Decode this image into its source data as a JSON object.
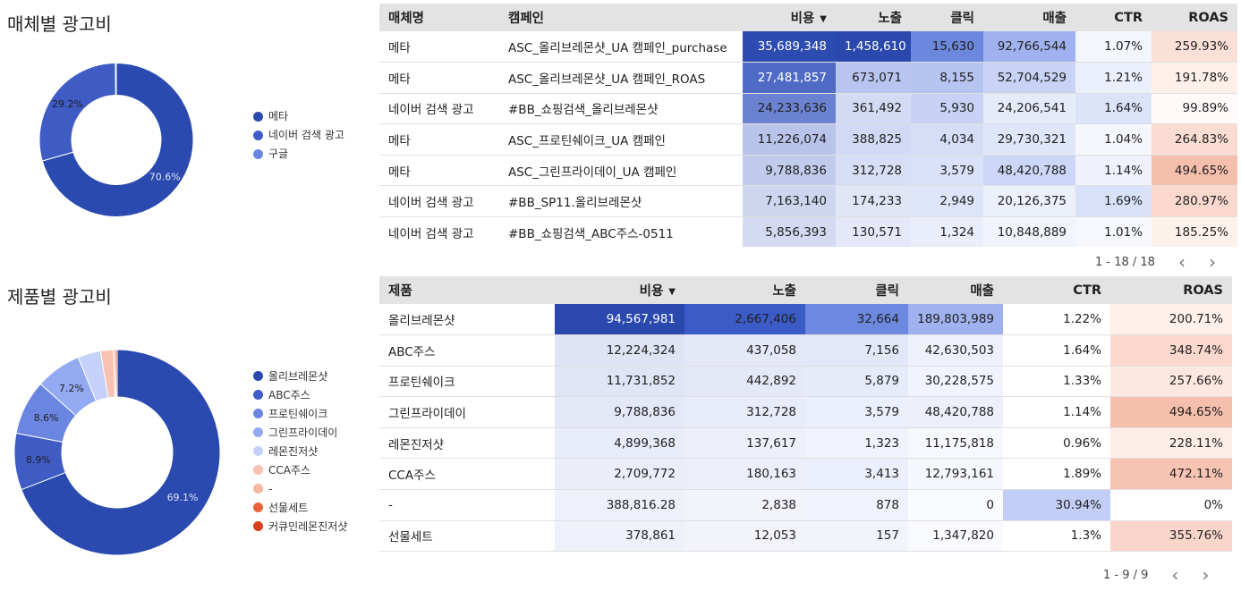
{
  "media_chart": {
    "title": "매체별 광고비",
    "legend": [
      {
        "name": "메타",
        "color": "#2a4aaf"
      },
      {
        "name": "네이버 검색 광고",
        "color": "#3e5cc4"
      },
      {
        "name": "구글",
        "color": "#6a86e0"
      }
    ],
    "slice_labels": [
      "70.6%",
      "29.2%"
    ]
  },
  "product_chart": {
    "title": "제품별 광고비",
    "legend": [
      {
        "name": "올리브레몬샷",
        "color": "#2a4aaf"
      },
      {
        "name": "ABC주스",
        "color": "#3e5cc4"
      },
      {
        "name": "프로틴쉐이크",
        "color": "#6a86e0"
      },
      {
        "name": "그린프라이데이",
        "color": "#93aaf2"
      },
      {
        "name": "레몬진저샷",
        "color": "#c5d1f8"
      },
      {
        "name": "CCA주스",
        "color": "#f7c1b3"
      },
      {
        "name": "-",
        "color": "#f6b89f"
      },
      {
        "name": "선물세트",
        "color": "#e8643a"
      },
      {
        "name": "커큐민레몬진저샷",
        "color": "#d8401c"
      }
    ],
    "slice_labels": [
      "69.1%",
      "8.9%",
      "8.6%",
      "7.2%"
    ]
  },
  "chart_data": [
    {
      "type": "pie",
      "title": "매체별 광고비",
      "categories": [
        "메타",
        "네이버 검색 광고",
        "구글"
      ],
      "values": [
        70.6,
        29.2,
        0.2
      ],
      "colors": [
        "#2a4aaf",
        "#3e5cc4",
        "#6a86e0"
      ]
    },
    {
      "type": "pie",
      "title": "제품별 광고비",
      "categories": [
        "올리브레몬샷",
        "ABC주스",
        "프로틴쉐이크",
        "그린프라이데이",
        "레몬진저샷",
        "CCA주스",
        "-",
        "선물세트",
        "커큐민레몬진저샷"
      ],
      "values": [
        69.1,
        8.9,
        8.6,
        7.2,
        3.6,
        2.0,
        0.3,
        0.3,
        0.0
      ],
      "colors": [
        "#2a4aaf",
        "#3e5cc4",
        "#6a86e0",
        "#93aaf2",
        "#c5d1f8",
        "#f7c1b3",
        "#f6b89f",
        "#e8643a",
        "#d8401c"
      ]
    }
  ],
  "campaign_table": {
    "columns": [
      {
        "label": "매체명",
        "align": "left",
        "sort": ""
      },
      {
        "label": "캠페인",
        "align": "left",
        "sort": ""
      },
      {
        "label": "비용",
        "align": "right",
        "sort": "▼"
      },
      {
        "label": "노출",
        "align": "right",
        "sort": ""
      },
      {
        "label": "클릭",
        "align": "right",
        "sort": ""
      },
      {
        "label": "매출",
        "align": "right",
        "sort": ""
      },
      {
        "label": "CTR",
        "align": "right",
        "sort": ""
      },
      {
        "label": "ROAS",
        "align": "right",
        "sort": ""
      }
    ],
    "rows": [
      {
        "cells": [
          "메타",
          "ASC_올리브레몬샷_UA 캠페인_purchase",
          "35,689,348",
          "1,458,610",
          "15,630",
          "92,766,544",
          "1.07%",
          "259.93%"
        ],
        "bg": [
          "",
          "",
          "#2d4cb1",
          "#2a48ae",
          "#6b87de",
          "#9fb2ef",
          "#f3f6fd",
          "#fbe0d8"
        ],
        "fg": [
          "",
          "",
          "#ffffff",
          "#ffffff",
          "",
          "",
          "",
          ""
        ]
      },
      {
        "cells": [
          "메타",
          "ASC_올리브레몬샷_UA 캠페인_ROAS",
          "27,481,857",
          "673,071",
          "8,155",
          "52,704,529",
          "1.21%",
          "191.78%"
        ],
        "bg": [
          "",
          "",
          "#506bc6",
          "#b7c5f0",
          "#b6c4f1",
          "#c8d3f5",
          "#ebeffb",
          "#fdefea"
        ],
        "fg": [
          "",
          "",
          "#ffffff",
          "",
          "",
          "",
          "",
          ""
        ]
      },
      {
        "cells": [
          "네이버 검색 광고",
          "#BB_쇼핑검색_올리브레몬샷",
          "24,233,636",
          "361,492",
          "5,930",
          "24,206,541",
          "1.64%",
          "99.89%"
        ],
        "bg": [
          "",
          "",
          "#6a82d1",
          "#d3dbf4",
          "#c7d2f4",
          "#e6ebfa",
          "#dbe3f9",
          "#fffaf9"
        ],
        "fg": [
          "",
          "",
          "",
          "",
          "",
          "",
          "",
          ""
        ]
      },
      {
        "cells": [
          "메타",
          "ASC_프로틴쉐이크_UA 캠페인",
          "11,226,074",
          "388,825",
          "4,034",
          "29,730,321",
          "1.04%",
          "264.83%"
        ],
        "bg": [
          "",
          "",
          "#b8c4ea",
          "#d1d9f4",
          "#d6def7",
          "#e0e6f9",
          "#f5f7fd",
          "#fbdcd2"
        ],
        "fg": [
          "",
          "",
          "",
          "",
          "",
          "",
          "",
          ""
        ]
      },
      {
        "cells": [
          "메타",
          "ASC_그린프라이데이_UA 캠페인",
          "9,788,836",
          "312,728",
          "3,579",
          "48,420,788",
          "1.14%",
          "494.65%"
        ],
        "bg": [
          "",
          "",
          "#c1cbec",
          "#d7def5",
          "#dae1f8",
          "#ccd6f6",
          "#eff2fc",
          "#f6bfad"
        ],
        "fg": [
          "",
          "",
          "",
          "",
          "",
          "",
          "",
          ""
        ]
      },
      {
        "cells": [
          "네이버 검색 광고",
          "#BB_SP11.올리브레몬샷",
          "7,163,140",
          "174,233",
          "2,949",
          "20,126,375",
          "1.69%",
          "280.97%"
        ],
        "bg": [
          "",
          "",
          "#cdd5ef",
          "#e1e6f7",
          "#dfe5f9",
          "#ecf0fb",
          "#d9e1f9",
          "#fad8cd"
        ],
        "fg": [
          "",
          "",
          "",
          "",
          "",
          "",
          "",
          ""
        ]
      },
      {
        "cells": [
          "네이버 검색 광고",
          "#BB_쇼핑검색_ABC주스-0511",
          "5,856,393",
          "130,571",
          "1,324",
          "10,848,889",
          "1.01%",
          "185.25%"
        ],
        "bg": [
          "",
          "",
          "#d3daf1",
          "#e4e8f8",
          "#eaeefb",
          "#f1f4fc",
          "#f6f8fd",
          "#fdf1ec"
        ],
        "fg": [
          "",
          "",
          "",
          "",
          "",
          "",
          "",
          ""
        ]
      }
    ],
    "pager_text": "1 - 18 / 18",
    "prev_icon": "‹",
    "next_icon": "›"
  },
  "product_table": {
    "columns": [
      {
        "label": "제품",
        "align": "left",
        "sort": ""
      },
      {
        "label": "비용",
        "align": "right",
        "sort": "▼"
      },
      {
        "label": "노출",
        "align": "right",
        "sort": ""
      },
      {
        "label": "클릭",
        "align": "right",
        "sort": ""
      },
      {
        "label": "매출",
        "align": "right",
        "sort": ""
      },
      {
        "label": "CTR",
        "align": "right",
        "sort": ""
      },
      {
        "label": "ROAS",
        "align": "right",
        "sort": ""
      }
    ],
    "rows": [
      {
        "cells": [
          "올리브레몬샷",
          "94,567,981",
          "2,667,406",
          "32,664",
          "189,803,989",
          "1.22%",
          "200.71%"
        ],
        "bg": [
          "",
          "#2a48ae",
          "#3b5bc7",
          "#6d88df",
          "#9fb2ef",
          "#ffffff",
          "#fdf0eb"
        ],
        "fg": [
          "",
          "#ffffff",
          "",
          "",
          "",
          "",
          ""
        ]
      },
      {
        "cells": [
          "ABC주스",
          "12,224,324",
          "437,058",
          "7,156",
          "42,630,503",
          "1.64%",
          "348.74%"
        ],
        "bg": [
          "",
          "#dfe4f4",
          "#e4e8f7",
          "#e3e8f9",
          "#eef1fb",
          "#ffffff",
          "#fad8cd"
        ],
        "fg": [
          "",
          "",
          "",
          "",
          "",
          "",
          ""
        ]
      },
      {
        "cells": [
          "프로틴쉐이크",
          "11,731,852",
          "442,892",
          "5,879",
          "30,228,575",
          "1.33%",
          "257.66%"
        ],
        "bg": [
          "",
          "#e0e5f5",
          "#e4e8f7",
          "#e6ebfa",
          "#f1f4fc",
          "#ffffff",
          "#fce8e1"
        ],
        "fg": [
          "",
          "",
          "",
          "",
          "",
          "",
          ""
        ]
      },
      {
        "cells": [
          "그린프라이데이",
          "9,788,836",
          "312,728",
          "3,579",
          "48,420,788",
          "1.14%",
          "494.65%"
        ],
        "bg": [
          "",
          "#e3e7f6",
          "#e8ebf8",
          "#ebeffb",
          "#edf0fb",
          "#ffffff",
          "#f6bfad"
        ],
        "fg": [
          "",
          "",
          "",
          "",
          "",
          "",
          ""
        ]
      },
      {
        "cells": [
          "레몬진저샷",
          "4,899,368",
          "137,617",
          "1,323",
          "11,175,818",
          "0.96%",
          "228.11%"
        ],
        "bg": [
          "",
          "#e8ebf8",
          "#eef0f9",
          "#f0f2fc",
          "#f6f8fd",
          "#ffffff",
          "#fdede7"
        ],
        "fg": [
          "",
          "",
          "",
          "",
          "",
          "",
          ""
        ]
      },
      {
        "cells": [
          "CCA주스",
          "2,709,772",
          "180,163",
          "3,413",
          "12,793,161",
          "1.89%",
          "472.11%"
        ],
        "bg": [
          "",
          "#ebeef9",
          "#eceff9",
          "#ebeffb",
          "#f5f7fd",
          "#ffffff",
          "#f7c4b3"
        ],
        "fg": [
          "",
          "",
          "",
          "",
          "",
          "",
          ""
        ]
      },
      {
        "cells": [
          "-",
          "388,816.28",
          "2,838",
          "878",
          "0",
          "30.94%",
          "0%"
        ],
        "bg": [
          "",
          "#eff1fa",
          "#f2f3fb",
          "#f1f3fc",
          "#fafbfe",
          "#c3cef6",
          "#ffffff"
        ],
        "fg": [
          "",
          "",
          "",
          "",
          "",
          "",
          ""
        ]
      },
      {
        "cells": [
          "선물세트",
          "378,861",
          "12,053",
          "157",
          "1,347,820",
          "1.3%",
          "355.76%"
        ],
        "bg": [
          "",
          "#eff1fa",
          "#f2f3fb",
          "#f2f4fc",
          "#f9fafe",
          "#ffffff",
          "#fad6ca"
        ],
        "fg": [
          "",
          "",
          "",
          "",
          "",
          "",
          ""
        ]
      }
    ],
    "pager_text": "1 - 9 / 9",
    "prev_icon": "‹",
    "next_icon": "›"
  }
}
